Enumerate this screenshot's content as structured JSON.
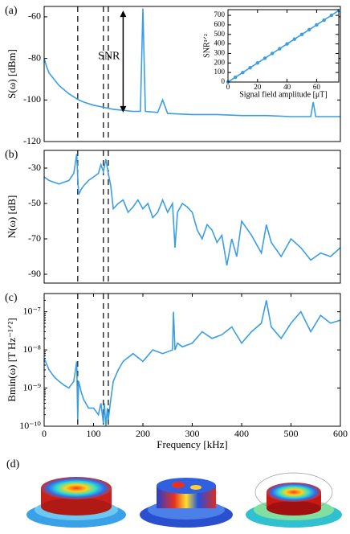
{
  "chart_data": [
    {
      "type": "line",
      "panel_label": "(a)",
      "ylabel": "S(ω) [dBm]",
      "color": "#3a9ee6",
      "x": [
        0,
        5,
        10,
        20,
        30,
        40,
        50,
        60,
        70,
        80,
        100,
        120,
        140,
        160,
        180,
        195,
        200,
        205,
        230,
        240,
        250,
        300,
        350,
        400,
        450,
        500,
        540,
        545,
        550,
        600
      ],
      "values": [
        -80,
        -84,
        -87,
        -90,
        -93,
        -95,
        -97,
        -98.5,
        -100,
        -101,
        -102.5,
        -103.5,
        -104.5,
        -105,
        -105.5,
        -105.5,
        -56,
        -105.5,
        -106,
        -100,
        -106.5,
        -107,
        -107,
        -107.5,
        -107.5,
        -108,
        -108,
        -101,
        -108,
        -108
      ],
      "xlim": [
        0,
        600
      ],
      "ylim": [
        -120,
        -55
      ],
      "yticks": [
        -60,
        -80,
        -100,
        -120
      ],
      "vlines": [
        68,
        120,
        130
      ],
      "annotation": {
        "text": "SNR",
        "x": 160,
        "y_top": -57,
        "y_bottom": -106
      }
    },
    {
      "type": "line",
      "panel_label": "(b)",
      "ylabel": "N(ω) [dB]",
      "color": "#3a9ee6",
      "x": [
        0,
        10,
        20,
        30,
        40,
        50,
        60,
        66,
        68,
        70,
        75,
        80,
        90,
        100,
        110,
        115,
        120,
        125,
        130,
        135,
        140,
        150,
        160,
        170,
        180,
        190,
        200,
        210,
        220,
        230,
        240,
        250,
        260,
        265,
        270,
        280,
        290,
        300,
        310,
        320,
        330,
        340,
        350,
        360,
        370,
        380,
        390,
        400,
        420,
        440,
        450,
        460,
        480,
        500,
        520,
        540,
        560,
        580,
        600
      ],
      "values": [
        -35,
        -37,
        -38,
        -39,
        -38,
        -37,
        -33,
        -22,
        -35,
        -45,
        -42,
        -40,
        -37,
        -35,
        -33,
        -28,
        -32,
        -25,
        -33,
        -40,
        -53,
        -50,
        -48,
        -55,
        -52,
        -48,
        -53,
        -50,
        -58,
        -55,
        -48,
        -55,
        -50,
        -75,
        -55,
        -50,
        -52,
        -55,
        -65,
        -70,
        -62,
        -65,
        -72,
        -68,
        -85,
        -70,
        -80,
        -60,
        -68,
        -78,
        -62,
        -72,
        -80,
        -70,
        -75,
        -82,
        -78,
        -80,
        -75
      ],
      "xlim": [
        0,
        600
      ],
      "ylim": [
        -95,
        -20
      ],
      "yticks": [
        -30,
        -50,
        -70,
        -90
      ],
      "vlines": [
        68,
        120,
        130
      ]
    },
    {
      "type": "line",
      "panel_label": "(c)",
      "ylabel": "Bmin(ω) [T Hz⁻¹ᐟ²]",
      "xlabel": "Frequency [kHz]",
      "color": "#3a9ee6",
      "x": [
        0,
        10,
        20,
        30,
        40,
        50,
        60,
        66,
        68,
        70,
        75,
        80,
        90,
        100,
        110,
        115,
        120,
        122,
        125,
        128,
        130,
        135,
        140,
        150,
        160,
        180,
        200,
        220,
        240,
        260,
        262,
        265,
        270,
        280,
        300,
        320,
        340,
        360,
        380,
        400,
        420,
        440,
        450,
        460,
        480,
        500,
        520,
        540,
        560,
        580,
        600
      ],
      "values": [
        6e-09,
        3e-09,
        2e-09,
        1.5e-09,
        1.2e-09,
        1e-09,
        1.5e-09,
        5e-09,
        1.5e-10,
        1.5e-09,
        8e-10,
        5e-10,
        3e-10,
        3e-10,
        2e-10,
        4e-10,
        1.2e-10,
        4e-10,
        1e-10,
        3e-10,
        1.5e-10,
        5e-10,
        1.5e-09,
        3e-09,
        5e-09,
        8e-09,
        5e-09,
        1e-08,
        8e-09,
        1e-08,
        1e-07,
        1e-08,
        1.5e-08,
        1.2e-08,
        1.5e-08,
        3e-08,
        2e-08,
        2.5e-08,
        4e-08,
        1.5e-08,
        3e-08,
        5e-08,
        2e-07,
        4e-08,
        2e-08,
        5e-08,
        1e-07,
        3e-08,
        8e-08,
        5e-08,
        6e-08
      ],
      "xlim": [
        0,
        600
      ],
      "xticks": [
        0,
        100,
        200,
        300,
        400,
        500,
        600
      ],
      "ylim": [
        1e-10,
        3e-07
      ],
      "log_y": true,
      "yticks": [
        {
          "value": 1e-10,
          "label": "10⁻¹⁰"
        },
        {
          "value": 1e-09,
          "label": "10⁻⁹"
        },
        {
          "value": 1e-08,
          "label": "10⁻⁸"
        },
        {
          "value": 1e-07,
          "label": "10⁻⁷"
        }
      ],
      "vlines": [
        68,
        120,
        130
      ]
    },
    {
      "type": "line",
      "inset": true,
      "markers": true,
      "ylabel": "SNR¹ᐟ²",
      "xlabel": "Signal field amplitude [μT]",
      "color": "#3a9ee6",
      "x": [
        0,
        5,
        10,
        15,
        20,
        25,
        30,
        35,
        40,
        45,
        50,
        55,
        60,
        65,
        70,
        75
      ],
      "values": [
        0,
        50,
        100,
        150,
        200,
        250,
        300,
        350,
        400,
        450,
        500,
        550,
        600,
        650,
        700,
        750
      ],
      "xlim": [
        0,
        75
      ],
      "xticks": [
        0,
        20,
        40,
        60
      ],
      "ylim": [
        0,
        760
      ],
      "yticks": [
        0,
        100,
        200,
        300,
        400,
        500,
        600,
        700
      ]
    }
  ],
  "panel_d": {
    "label": "(d)"
  }
}
